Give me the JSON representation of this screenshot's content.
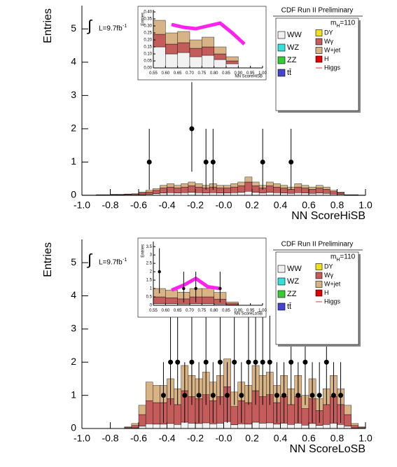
{
  "chart_data": [
    {
      "type": "histogram",
      "title": "CDF Run II Preliminary",
      "lumi": {
        "integral": "∫",
        "text": "L=9.7fb",
        "sup": "-1"
      },
      "mass_label": {
        "main": "m",
        "sub": "H",
        "rest": "=110"
      },
      "x_label": "NN ScoreHiSB",
      "y_label": "Entries",
      "xlim": [
        -1,
        1
      ],
      "ylim": [
        0,
        5.7
      ],
      "xticks": [
        {
          "value": -1,
          "label": "-1.0"
        },
        -0.8,
        -0.6,
        -0.4,
        -0.2,
        {
          "value": 0,
          "label": "-0.0"
        },
        0.2,
        0.4,
        0.6,
        0.8,
        {
          "value": 1,
          "label": "1.0"
        }
      ],
      "yticks": [
        0,
        1,
        2,
        3,
        4,
        5
      ],
      "bins": [
        -1,
        -0.95,
        -0.9,
        -0.85,
        -0.8,
        -0.75,
        -0.7,
        -0.65,
        -0.6,
        -0.55,
        -0.5,
        -0.45,
        -0.4,
        -0.35,
        -0.3,
        -0.25,
        -0.2,
        -0.15,
        -0.1,
        -0.05,
        0,
        0.05,
        0.1,
        0.15,
        0.2,
        0.25,
        0.3,
        0.35,
        0.4,
        0.45,
        0.5,
        0.55,
        0.6,
        0.65,
        0.7,
        0.75,
        0.8,
        0.85,
        0.9,
        0.95,
        1
      ],
      "series": [
        {
          "name": "WW",
          "color": "#f2f2f2",
          "values": [
            0,
            0,
            0.01,
            0.01,
            0.01,
            0.01,
            0.01,
            0.01,
            0.02,
            0.03,
            0.05,
            0.07,
            0.08,
            0.07,
            0.08,
            0.09,
            0.08,
            0.07,
            0.08,
            0.07,
            0.07,
            0.08,
            0.09,
            0.12,
            0.09,
            0.07,
            0.09,
            0.08,
            0.07,
            0.06,
            0.08,
            0.07,
            0.06,
            0.07,
            0.06,
            0.04,
            0.03,
            0.01,
            0.01,
            0
          ]
        },
        {
          "name": "WZ",
          "color": "#33e0e0"
        },
        {
          "name": "ZZ",
          "color": "#33cc33"
        },
        {
          "name": "tt̄",
          "color": "#4444cc"
        },
        {
          "name": "DY",
          "color": "#f0e020"
        },
        {
          "name": "Wγ",
          "color": "#c45c5c",
          "values": [
            0.01,
            0.01,
            0.01,
            0.01,
            0.01,
            0.01,
            0.02,
            0.02,
            0.05,
            0.07,
            0.1,
            0.15,
            0.17,
            0.15,
            0.17,
            0.2,
            0.17,
            0.15,
            0.17,
            0.15,
            0.15,
            0.17,
            0.2,
            0.28,
            0.2,
            0.15,
            0.2,
            0.17,
            0.15,
            0.12,
            0.17,
            0.15,
            0.12,
            0.15,
            0.12,
            0.07,
            0.05,
            0.01,
            0.01,
            0.01
          ]
        },
        {
          "name": "W+jet",
          "color": "#d8b385",
          "values": [
            0,
            0,
            0,
            0,
            0.01,
            0.01,
            0.01,
            0.02,
            0.03,
            0.05,
            0.05,
            0.08,
            0.1,
            0.08,
            0.1,
            0.11,
            0.1,
            0.08,
            0.1,
            0.08,
            0.08,
            0.1,
            0.11,
            0.15,
            0.11,
            0.08,
            0.11,
            0.1,
            0.08,
            0.07,
            0.1,
            0.08,
            0.07,
            0.08,
            0.07,
            0.04,
            0.02,
            0,
            0,
            0
          ]
        },
        {
          "name": "H",
          "color": "#e00000"
        },
        {
          "name": "Higgs",
          "color": "#e00000",
          "style": "line"
        }
      ],
      "points": {
        "x": [
          -0.525,
          -0.225,
          -0.125,
          -0.075,
          0.275,
          0.475
        ],
        "y": [
          1,
          2,
          1,
          1,
          1,
          1
        ],
        "yerr_low": [
          0.83,
          1.29,
          0.83,
          0.83,
          0.83,
          0.83
        ],
        "yerr_high": [
          1,
          1.4,
          1,
          1,
          1,
          1
        ]
      },
      "inset": {
        "x_label": "NN ScoreHiSB",
        "y_label": "Entries",
        "xlim": [
          0.55,
          1
        ],
        "ylim": [
          0,
          0.415
        ],
        "xticks": [
          0.55,
          {
            "value": 0.6,
            "label": "0.60"
          },
          0.65,
          {
            "value": 0.7,
            "label": "0.70"
          },
          0.75,
          {
            "value": 0.8,
            "label": "0.80"
          },
          0.85,
          {
            "value": 0.9,
            "label": "0.90"
          },
          0.95,
          {
            "value": 1,
            "label": "1.00"
          }
        ],
        "yticks": [
          {
            "value": 0,
            "label": "0.00"
          },
          0.05,
          {
            "value": 0.1,
            "label": "0.10"
          },
          0.15,
          {
            "value": 0.2,
            "label": "0.20"
          },
          0.25,
          {
            "value": 0.3,
            "label": "0.30"
          },
          0.35,
          {
            "value": 0.4,
            "label": "0.40"
          }
        ],
        "bins": [
          0.55,
          0.6,
          0.65,
          0.7,
          0.75,
          0.8,
          0.85,
          0.9,
          0.95,
          1
        ],
        "stacks": [
          {
            "color": "#f2f2f2",
            "values": [
              0.15,
              0.1,
              0.11,
              0.08,
              0.09,
              0.06,
              0.03,
              0,
              0
            ]
          },
          {
            "color": "#c45c5c",
            "values": [
              0.09,
              0.07,
              0.07,
              0.06,
              0.06,
              0.04,
              0.02,
              0,
              0
            ]
          },
          {
            "color": "#d8b385",
            "values": [
              0.1,
              0.08,
              0.08,
              0.06,
              0.07,
              0.05,
              0.03,
              0,
              0
            ]
          }
        ],
        "band": {
          "color": "#ff22ee",
          "values": [
            null,
            0.31,
            0.29,
            0.28,
            0.3,
            0.32,
            0.25,
            0.17,
            null
          ]
        },
        "points": {
          "x": [],
          "y": [],
          "yerr_low": [],
          "yerr_high": []
        }
      }
    },
    {
      "type": "histogram",
      "title": "CDF Run II Preliminary",
      "lumi": {
        "integral": "∫",
        "text": "L=9.7fb",
        "sup": "-1"
      },
      "mass_label": {
        "main": "m",
        "sub": "H",
        "rest": "=110"
      },
      "x_label": "NN ScoreLoSB",
      "y_label": "Entries",
      "xlim": [
        -1,
        1
      ],
      "ylim": [
        0,
        5.7
      ],
      "xticks": [
        {
          "value": -1,
          "label": "-1.0"
        },
        -0.8,
        -0.6,
        -0.4,
        -0.2,
        {
          "value": 0,
          "label": "-0.0"
        },
        0.2,
        0.4,
        0.6,
        0.8,
        {
          "value": 1,
          "label": "1.0"
        }
      ],
      "yticks": [
        0,
        1,
        2,
        3,
        4,
        5
      ],
      "bins": [
        -1,
        -0.95,
        -0.9,
        -0.85,
        -0.8,
        -0.75,
        -0.7,
        -0.65,
        -0.6,
        -0.55,
        -0.5,
        -0.45,
        -0.4,
        -0.35,
        -0.3,
        -0.25,
        -0.2,
        -0.15,
        -0.1,
        -0.05,
        0,
        0.05,
        0.1,
        0.15,
        0.2,
        0.25,
        0.3,
        0.35,
        0.4,
        0.45,
        0.5,
        0.55,
        0.6,
        0.65,
        0.7,
        0.75,
        0.8,
        0.85,
        0.9,
        0.95,
        1
      ],
      "series": [
        {
          "name": "WW",
          "color": "#f2f2f2",
          "values": [
            0,
            0,
            0,
            0,
            0,
            0,
            0.01,
            0.02,
            0.07,
            0.14,
            0.13,
            0.13,
            0.15,
            0.12,
            0.19,
            0.16,
            0.15,
            0.17,
            0.14,
            0.16,
            0.21,
            0.11,
            0.14,
            0.13,
            0.19,
            0.16,
            0.17,
            0.13,
            0.16,
            0.12,
            0.16,
            0.1,
            0.15,
            0.09,
            0.12,
            0.16,
            0.12,
            0.07,
            0.02,
            0.01
          ]
        },
        {
          "name": "WZ",
          "color": "#33e0e0"
        },
        {
          "name": "ZZ",
          "color": "#33cc33"
        },
        {
          "name": "tt̄",
          "color": "#4444cc"
        },
        {
          "name": "DY",
          "color": "#f0e020"
        },
        {
          "name": "Wγ",
          "color": "#c45c5c",
          "values": [
            0,
            0,
            0,
            0,
            0,
            0,
            0.02,
            0.07,
            0.35,
            0.7,
            0.65,
            0.65,
            0.75,
            0.6,
            0.95,
            0.8,
            0.75,
            0.85,
            0.7,
            0.8,
            1.05,
            0.55,
            0.7,
            0.65,
            0.95,
            0.8,
            0.85,
            0.65,
            0.8,
            0.6,
            0.8,
            0.5,
            0.75,
            0.45,
            0.6,
            0.8,
            0.6,
            0.35,
            0.07,
            0.02
          ]
        },
        {
          "name": "W+jet",
          "color": "#d8b385",
          "values": [
            0,
            0,
            0,
            0,
            0,
            0,
            0.02,
            0.06,
            0.28,
            0.56,
            0.52,
            0.52,
            0.6,
            0.48,
            0.76,
            0.64,
            0.6,
            0.68,
            0.56,
            0.64,
            0.84,
            0.44,
            0.56,
            0.52,
            0.76,
            0.64,
            0.68,
            0.52,
            0.64,
            0.48,
            0.64,
            0.4,
            0.6,
            0.36,
            0.48,
            0.64,
            0.48,
            0.28,
            0.06,
            0.02
          ]
        },
        {
          "name": "H",
          "color": "#e00000"
        },
        {
          "name": "Higgs",
          "color": "#e00000",
          "style": "line"
        }
      ],
      "points": {
        "x": [
          -0.425,
          -0.375,
          -0.325,
          -0.275,
          -0.225,
          -0.175,
          -0.125,
          -0.075,
          -0.025,
          0.025,
          0.075,
          0.125,
          0.175,
          0.225,
          0.275,
          0.325,
          0.375,
          0.425,
          0.475,
          0.525,
          0.575,
          0.625,
          0.675,
          0.725,
          0.775,
          0.825
        ],
        "y": [
          1,
          2,
          2,
          1,
          2,
          1,
          2,
          1,
          2,
          1,
          2,
          1,
          2,
          2,
          2,
          2,
          1,
          1,
          2,
          1,
          2,
          1,
          1,
          2,
          1,
          1
        ],
        "yerr_low": [
          0.83,
          1.29,
          1.29,
          0.83,
          1.29,
          0.83,
          1.29,
          0.83,
          1.29,
          0.83,
          1.29,
          0.83,
          1.29,
          1.29,
          1.29,
          1.29,
          0.83,
          0.83,
          1.29,
          0.83,
          1.29,
          0.83,
          0.83,
          1.29,
          0.83,
          0.83
        ],
        "yerr_high": [
          1,
          1.4,
          1.4,
          1,
          1.4,
          1,
          1.4,
          1,
          1.4,
          1,
          1.4,
          1,
          1.4,
          1.4,
          1.4,
          1.4,
          1,
          1,
          1.4,
          1,
          1.4,
          1,
          1,
          1.4,
          1,
          1
        ]
      },
      "inset": {
        "x_label": "NN ScoreLoSB",
        "y_label": "Entries",
        "xlim": [
          0.55,
          1
        ],
        "ylim": [
          0,
          3.8
        ],
        "xticks": [
          0.55,
          {
            "value": 0.6,
            "label": "0.60"
          },
          0.65,
          {
            "value": 0.7,
            "label": "0.70"
          },
          0.75,
          {
            "value": 0.8,
            "label": "0.80"
          },
          0.85,
          {
            "value": 0.9,
            "label": "0.90"
          },
          0.95,
          {
            "value": 1,
            "label": "1.00"
          }
        ],
        "yticks": [
          0,
          0.5,
          1,
          1.5,
          2,
          2.5,
          3,
          3.5
        ],
        "bins": [
          0.55,
          0.6,
          0.65,
          0.7,
          0.75,
          0.8,
          0.85,
          0.9,
          0.95,
          1
        ],
        "stacks": [
          {
            "color": "#f2f2f2",
            "values": [
              0.1,
              0.1,
              0.08,
              0.1,
              0.1,
              0.07,
              0.02,
              0,
              0
            ]
          },
          {
            "color": "#c45c5c",
            "values": [
              0.4,
              0.35,
              0.3,
              0.4,
              0.4,
              0.3,
              0.08,
              0,
              0
            ]
          },
          {
            "color": "#d8b385",
            "values": [
              0.5,
              0.45,
              0.4,
              0.5,
              0.5,
              0.4,
              0.1,
              0,
              0
            ]
          }
        ],
        "band": {
          "color": "#ff22ee",
          "values": [
            null,
            0.9,
            1.2,
            1.6,
            1.1,
            1,
            null,
            null,
            null
          ]
        },
        "points": {
          "x": [
            0.575,
            0.675,
            0.725,
            0.825
          ],
          "y": [
            2,
            1,
            1,
            1
          ],
          "yerr_low": [
            1.29,
            0.83,
            0.83,
            0.83
          ],
          "yerr_high": [
            1.4,
            1,
            1,
            1
          ]
        }
      }
    }
  ]
}
